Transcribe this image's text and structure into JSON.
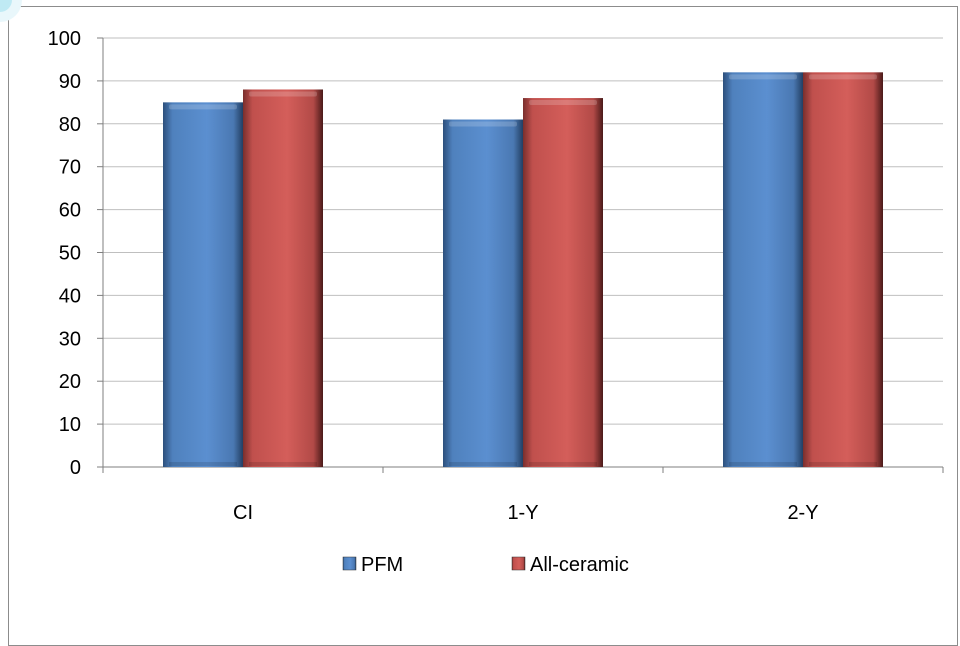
{
  "chart_data": {
    "type": "bar",
    "title": "",
    "xlabel": "",
    "ylabel": "",
    "categories": [
      "CI",
      "1-Y",
      "2-Y"
    ],
    "series": [
      {
        "name": "PFM",
        "values": [
          85,
          81,
          92
        ],
        "color": "#4f81bd"
      },
      {
        "name": "All-ceramic",
        "values": [
          88,
          86,
          92
        ],
        "color": "#c0504d"
      }
    ],
    "ylim": [
      0,
      100
    ],
    "yticks": [
      0,
      10,
      20,
      30,
      40,
      50,
      60,
      70,
      80,
      90,
      100
    ],
    "grid": true,
    "legend": "bottom-center"
  }
}
